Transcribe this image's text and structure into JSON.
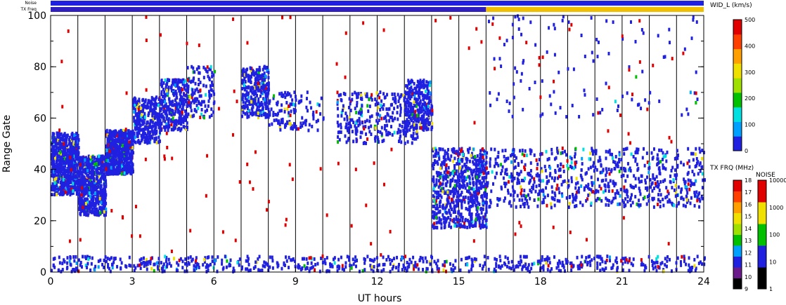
{
  "chart_data": {
    "type": "scatter",
    "title": "",
    "xlabel": "UT hours",
    "ylabel": "Range Gate",
    "xlim": [
      0,
      24
    ],
    "ylim": [
      0,
      100
    ],
    "x_ticks": [
      "0",
      "3",
      "6",
      "9",
      "12",
      "15",
      "18",
      "21",
      "24"
    ],
    "y_ticks": [
      "0",
      "20",
      "40",
      "60",
      "80",
      "100"
    ],
    "grid": false,
    "hour_markers": [
      1,
      2,
      3,
      4,
      5,
      6,
      7,
      8,
      9,
      10,
      11,
      12,
      13,
      14,
      15,
      16,
      17,
      18,
      19,
      20,
      21,
      22,
      23,
      24
    ],
    "top_strips": {
      "noise_label": "Noise",
      "txfreq_label": "TX Freq",
      "noise_color": "#2020e0",
      "txfreq_segments": [
        {
          "from": 0,
          "to": 16,
          "color": "#3020c0"
        },
        {
          "from": 16,
          "to": 24,
          "color": "#f0c000"
        }
      ]
    },
    "scatter_bands": [
      {
        "x": [
          0.0,
          1.0
        ],
        "gate": [
          30,
          54
        ],
        "density": "high",
        "color": "#2020e0"
      },
      {
        "x": [
          1.0,
          2.0
        ],
        "gate": [
          22,
          45
        ],
        "density": "high",
        "color": "#2020e0"
      },
      {
        "x": [
          2.0,
          3.0
        ],
        "gate": [
          38,
          55
        ],
        "density": "high",
        "color": "#2020e0"
      },
      {
        "x": [
          3.0,
          4.0
        ],
        "gate": [
          50,
          68
        ],
        "density": "medium",
        "color": "#2020e0"
      },
      {
        "x": [
          4.0,
          5.0
        ],
        "gate": [
          55,
          75
        ],
        "density": "medium",
        "color": "#2020e0"
      },
      {
        "x": [
          5.0,
          6.0
        ],
        "gate": [
          60,
          80
        ],
        "density": "low",
        "color": "#2020e0"
      },
      {
        "x": [
          7.0,
          8.0
        ],
        "gate": [
          60,
          80
        ],
        "density": "medium",
        "color": "#2020e0"
      },
      {
        "x": [
          8.0,
          10.0
        ],
        "gate": [
          55,
          70
        ],
        "density": "low",
        "color": "#2020e0"
      },
      {
        "x": [
          10.5,
          13.5
        ],
        "gate": [
          50,
          70
        ],
        "density": "medium",
        "color": "#2020e0"
      },
      {
        "x": [
          13.0,
          14.0
        ],
        "gate": [
          55,
          75
        ],
        "density": "medium",
        "color": "#2020e0"
      },
      {
        "x": [
          14.0,
          16.0
        ],
        "gate": [
          17,
          48
        ],
        "density": "high",
        "color": "#2020e0"
      },
      {
        "x": [
          16.0,
          24.0
        ],
        "gate": [
          25,
          48
        ],
        "density": "high",
        "color": "#2020e0"
      },
      {
        "x": [
          16.0,
          24.0
        ],
        "gate": [
          60,
          100
        ],
        "density": "low",
        "color": "#2020e0"
      },
      {
        "x": [
          0.0,
          24.0
        ],
        "gate": [
          0,
          6
        ],
        "density": "high",
        "color": "#2020e0"
      },
      {
        "x": [
          0.0,
          24.0
        ],
        "gate": [
          0,
          100
        ],
        "density": "sparse",
        "color": "#e00000"
      }
    ],
    "colorbars": [
      {
        "label": "WID_L (km/s)",
        "ticks": [
          "0",
          "100",
          "200",
          "300",
          "400",
          "500"
        ],
        "colors": [
          "#2020e0",
          "#00a0ff",
          "#00e0e0",
          "#00c000",
          "#a0e000",
          "#f0e000",
          "#ffa000",
          "#ff4000",
          "#e00000"
        ]
      },
      {
        "label": "TX FRQ (MHz)",
        "ticks": [
          "9",
          "10",
          "11",
          "12",
          "13",
          "14",
          "15",
          "16",
          "17",
          "18"
        ],
        "colors": [
          "#000000",
          "#6a1a8a",
          "#2020e0",
          "#00a0ff",
          "#00c000",
          "#a0e000",
          "#f0e000",
          "#ffa000",
          "#ff4000",
          "#e00000"
        ]
      },
      {
        "label": "NOISE",
        "ticks": [
          "1",
          "10",
          "100",
          "1000",
          "10000"
        ],
        "colors": [
          "#000000",
          "#2020e0",
          "#00c000",
          "#f0e000",
          "#e00000"
        ]
      }
    ]
  }
}
